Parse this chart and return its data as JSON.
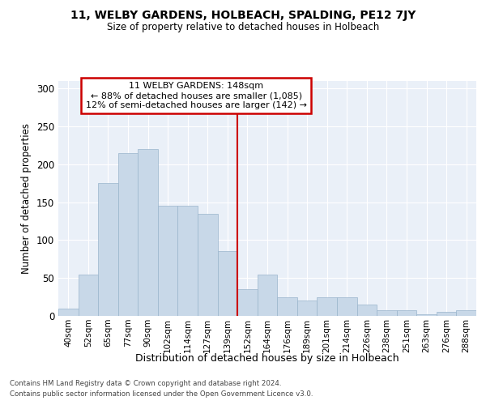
{
  "title": "11, WELBY GARDENS, HOLBEACH, SPALDING, PE12 7JY",
  "subtitle": "Size of property relative to detached houses in Holbeach",
  "xlabel": "Distribution of detached houses by size in Holbeach",
  "ylabel": "Number of detached properties",
  "bar_labels": [
    "40sqm",
    "52sqm",
    "65sqm",
    "77sqm",
    "90sqm",
    "102sqm",
    "114sqm",
    "127sqm",
    "139sqm",
    "152sqm",
    "164sqm",
    "176sqm",
    "189sqm",
    "201sqm",
    "214sqm",
    "226sqm",
    "238sqm",
    "251sqm",
    "263sqm",
    "276sqm",
    "288sqm"
  ],
  "bar_heights": [
    10,
    55,
    175,
    215,
    220,
    145,
    145,
    135,
    85,
    35,
    55,
    25,
    20,
    25,
    25,
    15,
    7,
    7,
    2,
    5,
    8
  ],
  "bar_color": "#c8d8e8",
  "bar_edgecolor": "#9ab5cc",
  "vline_x_index": 9,
  "vline_color": "#cc0000",
  "annotation_text": "11 WELBY GARDENS: 148sqm\n← 88% of detached houses are smaller (1,085)\n12% of semi-detached houses are larger (142) →",
  "annotation_box_facecolor": "white",
  "annotation_box_edgecolor": "#cc0000",
  "ylim": [
    0,
    310
  ],
  "yticks": [
    0,
    50,
    100,
    150,
    200,
    250,
    300
  ],
  "bg_color": "#eaf0f8",
  "footer1": "Contains HM Land Registry data © Crown copyright and database right 2024.",
  "footer2": "Contains public sector information licensed under the Open Government Licence v3.0."
}
